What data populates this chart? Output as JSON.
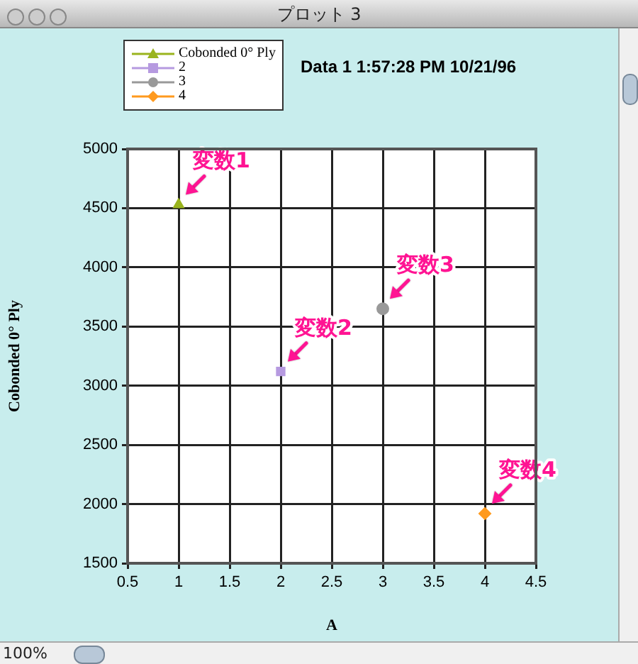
{
  "chart_data": {
    "type": "scatter",
    "title": "プロット 3",
    "subtitle": "Data 1 1:57:28 PM 10/21/96",
    "xlabel": "A",
    "ylabel": "Cobonded 0° Ply",
    "series": [
      {
        "name": "Cobonded 0° Ply",
        "color": "#9ab41e",
        "marker": "triangle",
        "x": [
          1
        ],
        "values": [
          4530
        ]
      },
      {
        "name": "2",
        "color": "#b69ae0",
        "marker": "square",
        "x": [
          2
        ],
        "values": [
          3120
        ]
      },
      {
        "name": "3",
        "color": "#999999",
        "marker": "circle",
        "x": [
          3
        ],
        "values": [
          3650
        ]
      },
      {
        "name": "4",
        "color": "#ff9a1e",
        "marker": "diamond",
        "x": [
          4
        ],
        "values": [
          1920
        ]
      }
    ],
    "xlim": [
      0.5,
      4.5
    ],
    "xticks": [
      0.5,
      1,
      1.5,
      2,
      2.5,
      3,
      3.5,
      4,
      4.5
    ],
    "ylim": [
      1500,
      5000
    ],
    "yticks": [
      1500,
      2000,
      2500,
      3000,
      3500,
      4000,
      4500,
      5000
    ],
    "grid": true,
    "legend": "top left",
    "annotations": [
      {
        "text": "変数1",
        "x": 1,
        "y": 4530
      },
      {
        "text": "変数2",
        "x": 2,
        "y": 3120
      },
      {
        "text": "変数3",
        "x": 3,
        "y": 3650
      },
      {
        "text": "変数4",
        "x": 4,
        "y": 1920
      },
      "100%"
    ]
  }
}
